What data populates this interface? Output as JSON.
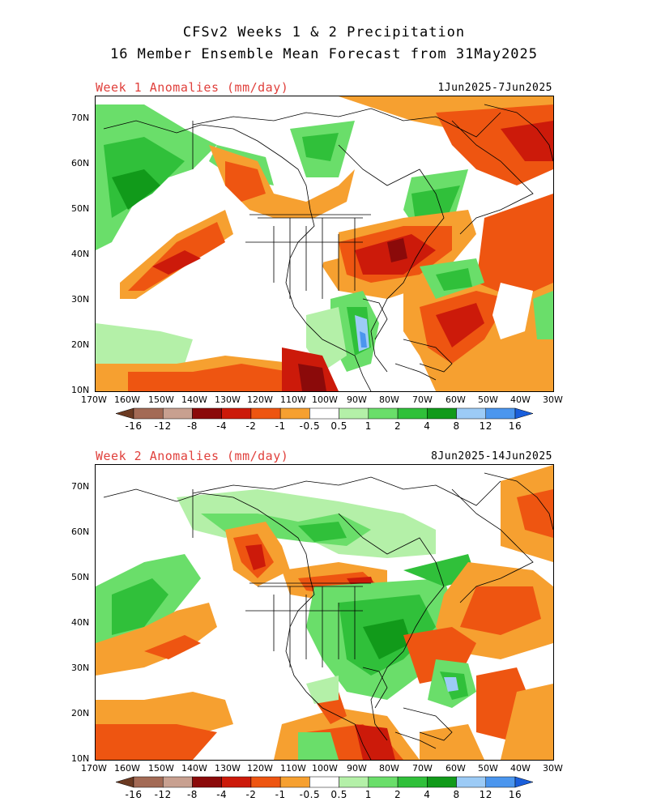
{
  "title": {
    "line1": "CFSv2 Weeks 1 & 2 Precipitation",
    "line2": "16 Member Ensemble Mean Forecast from 31May2025"
  },
  "panels": [
    {
      "label": "Week 1 Anomalies (mm/day)",
      "dates": "1Jun2025-7Jun2025"
    },
    {
      "label": "Week 2 Anomalies (mm/day)",
      "dates": "8Jun2025-14Jun2025"
    }
  ],
  "lat_ticks": [
    "70N",
    "60N",
    "50N",
    "40N",
    "30N",
    "20N",
    "10N"
  ],
  "lon_ticks": [
    "170W",
    "160W",
    "150W",
    "140W",
    "130W",
    "120W",
    "110W",
    "100W",
    "90W",
    "80W",
    "70W",
    "60W",
    "50W",
    "40W",
    "30W"
  ],
  "colorbar": {
    "labels": [
      "-16",
      "-12",
      "-8",
      "-4",
      "-2",
      "-1",
      "-0.5",
      "0.5",
      "1",
      "2",
      "4",
      "8",
      "12",
      "16"
    ],
    "colors": [
      "#6b3a22",
      "#a36a55",
      "#c8a090",
      "#8b0a0a",
      "#cc1a0a",
      "#ee5511",
      "#f6a030",
      "#ffffff",
      "#b4f0a8",
      "#6ade6a",
      "#30c03a",
      "#119a1a",
      "#9ccbf6",
      "#4b96ee",
      "#1a5fdc"
    ]
  },
  "colors": {
    "title_red": "#e0403c"
  }
}
